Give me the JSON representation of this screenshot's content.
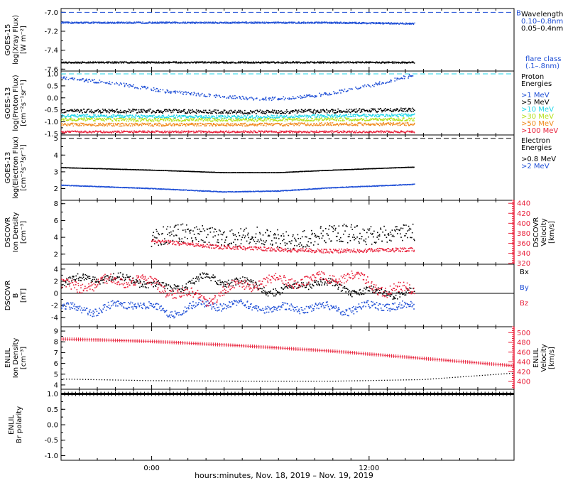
{
  "colors": {
    "black": "#000000",
    "blue": "#1f4fd6",
    "cyan": "#1ed5e8",
    "green": "#b3e01a",
    "orange": "#f08a1c",
    "red": "#e8203a",
    "axis": "#000000"
  },
  "chart_data": [
    {
      "type": "line",
      "panel": "goes15-xray",
      "ylabel_lines": [
        "GOES-15",
        "log(Xray Flux)",
        "[W m⁻²]"
      ],
      "ylim": [
        -7.62,
        -6.96
      ],
      "yticks": [
        "-7.0",
        "-7.2",
        "-7.4",
        "-7.6"
      ],
      "ytick_values": [
        -7.0,
        -7.2,
        -7.4,
        -7.6
      ],
      "reference_lines": [
        {
          "y": -7.0,
          "color": "blue",
          "label": "B"
        }
      ],
      "legend_title": [
        "Wavelength"
      ],
      "legend_items": [
        {
          "label": "0.10–0.8nm",
          "color": "blue"
        },
        {
          "label": "0.05–0.4nm",
          "color": "black"
        }
      ],
      "legend_note": [
        "flare class",
        "(.1–.8nm)"
      ],
      "legend_note_color": "blue",
      "series": [
        {
          "name": "0.10–0.8nm",
          "color": "blue",
          "x": [
            -5,
            0,
            5,
            10,
            14.5
          ],
          "y": [
            -7.11,
            -7.11,
            -7.11,
            -7.11,
            -7.12
          ],
          "noise": 0.008
        },
        {
          "name": "0.05–0.4nm",
          "color": "black",
          "x": [
            -5,
            0,
            5,
            10,
            14.5
          ],
          "y": [
            -7.53,
            -7.53,
            -7.53,
            -7.53,
            -7.53
          ],
          "noise": 0.008
        }
      ]
    },
    {
      "type": "scatter",
      "panel": "goes13-proton",
      "ylabel_lines": [
        "GOES-13",
        "log(Proton Flux)",
        "[cm⁻²s⁻¹sr⁻¹]"
      ],
      "ylim": [
        -1.55,
        1.12
      ],
      "yticks": [
        "1.0",
        "0.5",
        "0.0",
        "-0.5",
        "-1.0",
        "-1.5"
      ],
      "ytick_values": [
        1.0,
        0.5,
        0.0,
        -0.5,
        -1.0,
        -1.5
      ],
      "reference_lines": [
        {
          "y": 1.0,
          "color": "cyan",
          "label": ""
        }
      ],
      "legend_title": [
        "Proton",
        "Energies"
      ],
      "legend_items": [
        {
          "label": ">1 MeV",
          "color": "blue"
        },
        {
          "label": ">5 MeV",
          "color": "black"
        },
        {
          "label": ">10 MeV",
          "color": "cyan"
        },
        {
          "label": ">30 MeV",
          "color": "green"
        },
        {
          "label": ">50 MeV",
          "color": "orange"
        },
        {
          "label": ">100 MeV",
          "color": "red"
        }
      ],
      "series": [
        {
          "name": ">1 MeV",
          "color": "blue",
          "x": [
            -5,
            -2,
            1,
            4,
            6,
            8,
            10,
            12,
            14.5
          ],
          "y": [
            0.85,
            0.6,
            0.25,
            0.05,
            -0.05,
            0.0,
            0.2,
            0.5,
            0.95
          ],
          "noise": 0.07
        },
        {
          "name": ">5 MeV",
          "color": "black",
          "x": [
            -5,
            0,
            5,
            10,
            14.5
          ],
          "y": [
            -0.55,
            -0.55,
            -0.6,
            -0.55,
            -0.5
          ],
          "noise": 0.08
        },
        {
          "name": ">10 MeV",
          "color": "cyan",
          "x": [
            -5,
            0,
            5,
            10,
            14.5
          ],
          "y": [
            -0.75,
            -0.78,
            -0.8,
            -0.75,
            -0.72
          ],
          "noise": 0.06
        },
        {
          "name": ">30 MeV",
          "color": "green",
          "x": [
            -5,
            0,
            5,
            10,
            14.5
          ],
          "y": [
            -0.9,
            -0.92,
            -0.92,
            -0.9,
            -0.9
          ],
          "noise": 0.06
        },
        {
          "name": ">50 MeV",
          "color": "orange",
          "x": [
            -5,
            0,
            5,
            10,
            14.5
          ],
          "y": [
            -1.12,
            -1.12,
            -1.12,
            -1.1,
            -1.1
          ],
          "noise": 0.06
        },
        {
          "name": ">100 MeV",
          "color": "red",
          "x": [
            -5,
            0,
            5,
            10,
            14.5
          ],
          "y": [
            -1.42,
            -1.42,
            -1.42,
            -1.42,
            -1.42
          ],
          "noise": 0.04
        }
      ]
    },
    {
      "type": "line",
      "panel": "goes13-electron",
      "ylabel_lines": [
        "GOES-13",
        "log(Electron Flux)",
        "[cm⁻²s⁻¹sr⁻¹]"
      ],
      "ylim": [
        1.3,
        5.2
      ],
      "yticks": [
        "5",
        "4",
        "3",
        "2"
      ],
      "ytick_values": [
        5,
        4,
        3,
        2
      ],
      "reference_lines": [
        {
          "y": 5.0,
          "color": "black",
          "label": ""
        }
      ],
      "legend_title": [
        "Electron",
        "Energies"
      ],
      "legend_items": [
        {
          "label": ">0.8 MeV",
          "color": "black"
        },
        {
          "label": ">2 MeV",
          "color": "blue"
        }
      ],
      "series": [
        {
          "name": ">0.8 MeV",
          "color": "black",
          "x": [
            -5,
            0,
            4,
            7,
            10,
            14.5
          ],
          "y": [
            3.25,
            3.1,
            2.95,
            2.95,
            3.1,
            3.28
          ],
          "noise": 0.01
        },
        {
          "name": ">2 MeV",
          "color": "blue",
          "x": [
            -5,
            0,
            4,
            7,
            10,
            14.5
          ],
          "y": [
            2.2,
            2.0,
            1.8,
            1.85,
            2.05,
            2.25
          ],
          "noise": 0.02
        }
      ]
    },
    {
      "type": "scatter",
      "panel": "dscovr-density",
      "ylabel_lines": [
        "DSCOVR",
        "Ion Density",
        "[cm⁻³]"
      ],
      "ylim": [
        0.8,
        8.4
      ],
      "yticks": [
        "8",
        "6",
        "4",
        "2"
      ],
      "ytick_values": [
        8,
        6,
        4,
        2
      ],
      "right_ylabel_lines": [
        "DSCOVR",
        "Velocity",
        "[km/s]"
      ],
      "right_ylim": [
        318,
        446
      ],
      "right_yticks": [
        "440",
        "420",
        "400",
        "380",
        "360",
        "340",
        "320"
      ],
      "right_ytick_values": [
        440,
        420,
        400,
        380,
        360,
        340,
        320
      ],
      "series": [
        {
          "name": "Ion Density",
          "color": "black",
          "axis": "left",
          "x": [
            0,
            2,
            4,
            6,
            8,
            10,
            12,
            14.5
          ],
          "y": [
            4.0,
            4.6,
            3.8,
            4.2,
            3.5,
            4.6,
            4.2,
            4.5
          ],
          "noise": 1.1
        },
        {
          "name": "Velocity",
          "color": "red",
          "axis": "right",
          "x": [
            0,
            2,
            4,
            6,
            8,
            10,
            12,
            14.5
          ],
          "y": [
            365,
            358,
            352,
            349,
            346,
            344,
            346,
            347
          ],
          "noise": 4
        }
      ]
    },
    {
      "type": "scatter",
      "panel": "dscovr-b",
      "ylabel_lines": [
        "DSCOVR",
        "B",
        "[nT]"
      ],
      "ylim": [
        -5.5,
        4.8
      ],
      "yticks": [
        "4",
        "2",
        "0",
        "-2",
        "-4"
      ],
      "ytick_values": [
        4,
        2,
        0,
        -2,
        -4
      ],
      "zero_line": true,
      "legend_items": [
        {
          "label": "Bx",
          "color": "black"
        },
        {
          "label": "By",
          "color": "blue"
        },
        {
          "label": "Bz",
          "color": "red"
        }
      ],
      "series": [
        {
          "name": "Bx",
          "color": "black",
          "x": [
            -5,
            -3,
            -1,
            1,
            3,
            5,
            7,
            9,
            11,
            13,
            14.5
          ],
          "y": [
            1.8,
            2.6,
            2.2,
            0.8,
            2.5,
            1.8,
            0.2,
            2.0,
            0.5,
            0.0,
            0.2
          ],
          "noise": 0.6
        },
        {
          "name": "By",
          "color": "blue",
          "x": [
            -5,
            -3,
            -1,
            1,
            3,
            5,
            7,
            9,
            11,
            13,
            14.5
          ],
          "y": [
            -2.5,
            -2.8,
            -1.5,
            -3.2,
            -1.8,
            -2.0,
            -2.6,
            -2.2,
            -2.7,
            -1.8,
            -2.4
          ],
          "noise": 0.6
        },
        {
          "name": "Bz",
          "color": "red",
          "x": [
            -5,
            -3,
            -1,
            1,
            3,
            5,
            7,
            9,
            11,
            13,
            14.5
          ],
          "y": [
            1.0,
            1.5,
            2.5,
            0.5,
            -1.0,
            1.5,
            2.0,
            2.2,
            2.8,
            0.5,
            0.5
          ],
          "noise": 0.8
        }
      ]
    },
    {
      "type": "line",
      "panel": "enlil-density",
      "ylabel_lines": [
        "ENLIL",
        "Ion Density",
        "[cm⁻³]"
      ],
      "ylim": [
        3.6,
        9.4
      ],
      "yticks": [
        "9",
        "8",
        "7",
        "6",
        "5",
        "4"
      ],
      "ytick_values": [
        9,
        8,
        7,
        6,
        5,
        4
      ],
      "right_ylabel_lines": [
        "ENLIL",
        "Velocity",
        "[km/s]"
      ],
      "right_ylim": [
        384,
        512
      ],
      "right_yticks": [
        "500",
        "480",
        "460",
        "440",
        "420",
        "400"
      ],
      "right_ytick_values": [
        500,
        480,
        460,
        440,
        420,
        400
      ],
      "series": [
        {
          "name": "Ion Density",
          "color": "black",
          "axis": "left",
          "x": [
            -5,
            0,
            5,
            10,
            15,
            20
          ],
          "y": [
            4.55,
            4.4,
            4.35,
            4.35,
            4.5,
            5.1
          ],
          "noise": 0
        },
        {
          "name": "Velocity",
          "color": "red",
          "axis": "right",
          "x": [
            -5,
            0,
            5,
            10,
            15,
            20
          ],
          "y": [
            487,
            482,
            473,
            462,
            447,
            432
          ],
          "noise": 0
        }
      ]
    },
    {
      "type": "line",
      "panel": "enlil-polarity",
      "ylabel_lines": [
        "ENLIL",
        "Br polarity"
      ],
      "ylim": [
        -1.15,
        1.15
      ],
      "yticks": [
        "1.0",
        "0.5",
        "0.0",
        "-0.5",
        "-1.0"
      ],
      "ytick_values": [
        1.0,
        0.5,
        0.0,
        -0.5,
        -1.0
      ],
      "series": [
        {
          "name": "Br polarity",
          "color": "black",
          "x": [
            -5,
            20
          ],
          "y": [
            1.0,
            1.0
          ],
          "noise": 0
        }
      ]
    }
  ],
  "x_axis": {
    "range": [
      -5,
      20
    ],
    "tick_labels": [
      "0:00",
      "12:00"
    ],
    "tick_values": [
      0,
      12
    ],
    "caption": "hours:minutes, Nov. 18, 2019 – Nov. 19, 2019"
  }
}
